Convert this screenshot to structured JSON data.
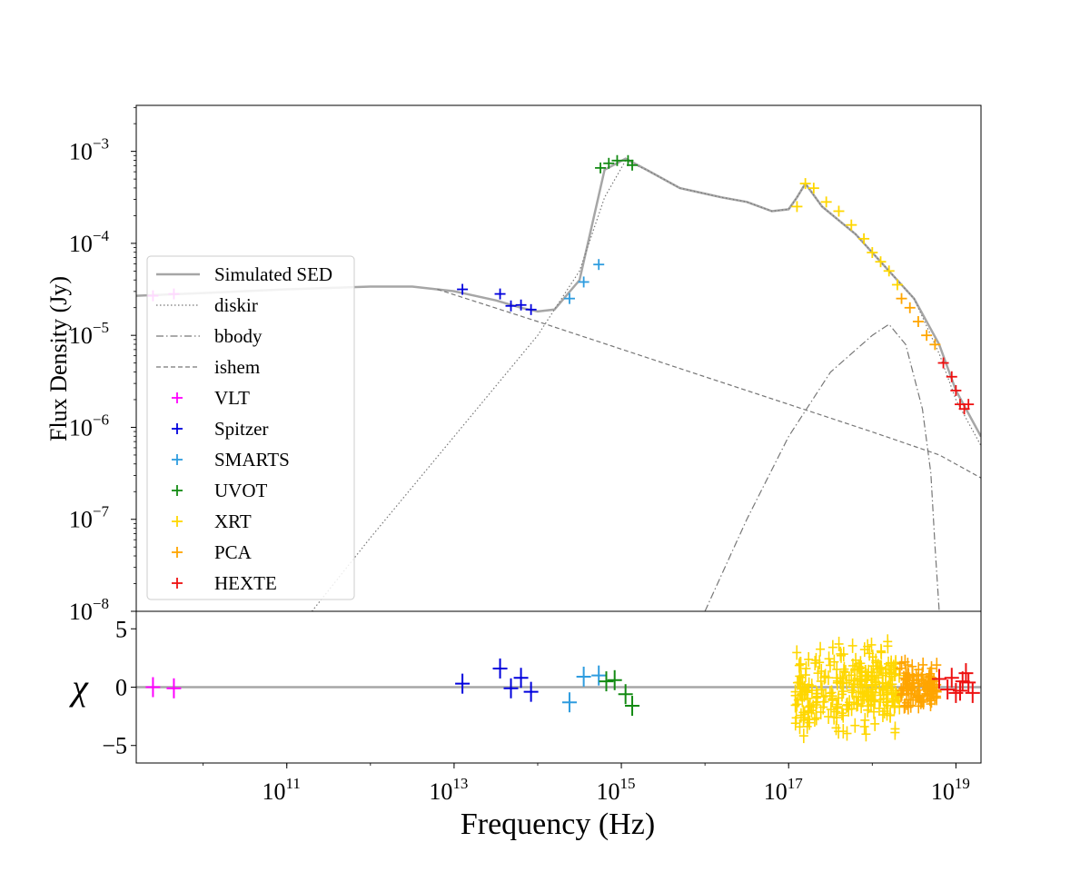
{
  "chart_data": [
    {
      "type": "line",
      "panel": "top",
      "title": "",
      "ylabel": "Flux  Density (Jy)",
      "xscale": "log",
      "yscale": "log",
      "xlim_log10": [
        9.2,
        19.3
      ],
      "ylim_log10": [
        -8,
        -2.5
      ],
      "y_ticks": [
        {
          "exp": -3,
          "base": "10",
          "sup": "−3"
        },
        {
          "exp": -4,
          "base": "10",
          "sup": "−4"
        },
        {
          "exp": -5,
          "base": "10",
          "sup": "−5"
        },
        {
          "exp": -6,
          "base": "10",
          "sup": "−6"
        },
        {
          "exp": -7,
          "base": "10",
          "sup": "−7"
        },
        {
          "exp": -8,
          "base": "10",
          "sup": "−8"
        }
      ],
      "legend_position": "lower-left",
      "model_curves": [
        {
          "name": "Simulated SED",
          "style": "solid",
          "color": "#a6a6a6",
          "points_log10": [
            [
              9.2,
              -4.57
            ],
            [
              10,
              -4.54
            ],
            [
              11,
              -4.5
            ],
            [
              12,
              -4.47
            ],
            [
              12.5,
              -4.47
            ],
            [
              13,
              -4.52
            ],
            [
              13.5,
              -4.62
            ],
            [
              13.8,
              -4.7
            ],
            [
              14,
              -4.74
            ],
            [
              14.2,
              -4.72
            ],
            [
              14.5,
              -4.4
            ],
            [
              14.8,
              -3.2
            ],
            [
              15.05,
              -3.08
            ],
            [
              15.3,
              -3.2
            ],
            [
              15.7,
              -3.4
            ],
            [
              16.2,
              -3.5
            ],
            [
              16.5,
              -3.55
            ],
            [
              16.8,
              -3.65
            ],
            [
              17,
              -3.63
            ],
            [
              17.1,
              -3.5
            ],
            [
              17.2,
              -3.35
            ],
            [
              17.4,
              -3.6
            ],
            [
              17.8,
              -3.9
            ],
            [
              18.2,
              -4.3
            ],
            [
              18.5,
              -4.6
            ],
            [
              18.8,
              -5.1
            ],
            [
              19,
              -5.6
            ],
            [
              19.3,
              -6.1
            ]
          ]
        },
        {
          "name": "diskir",
          "style": "dotted",
          "color": "#777777",
          "points_log10": [
            [
              11.3,
              -8
            ],
            [
              12,
              -7.2
            ],
            [
              13,
              -6.1
            ],
            [
              14,
              -5
            ],
            [
              14.5,
              -4.3
            ],
            [
              14.8,
              -3.5
            ],
            [
              15.05,
              -3.1
            ],
            [
              15.3,
              -3.2
            ],
            [
              15.7,
              -3.4
            ],
            [
              16.2,
              -3.5
            ],
            [
              16.5,
              -3.55
            ],
            [
              16.8,
              -3.65
            ],
            [
              17,
              -3.63
            ],
            [
              17.1,
              -3.5
            ],
            [
              17.2,
              -3.35
            ],
            [
              17.4,
              -3.6
            ],
            [
              17.8,
              -3.9
            ],
            [
              18.2,
              -4.3
            ],
            [
              18.5,
              -4.6
            ],
            [
              18.8,
              -5.2
            ],
            [
              19,
              -5.7
            ],
            [
              19.3,
              -6.2
            ]
          ]
        },
        {
          "name": "bbody",
          "style": "dash-dot",
          "color": "#777777",
          "points_log10": [
            [
              16,
              -8
            ],
            [
              16.5,
              -7
            ],
            [
              17,
              -6.1
            ],
            [
              17.5,
              -5.4
            ],
            [
              18,
              -5
            ],
            [
              18.2,
              -4.88
            ],
            [
              18.4,
              -5.1
            ],
            [
              18.6,
              -5.8
            ],
            [
              18.7,
              -6.5
            ],
            [
              18.75,
              -7.3
            ],
            [
              18.8,
              -8
            ]
          ]
        },
        {
          "name": "ishem",
          "style": "dashed",
          "color": "#777777",
          "points_log10": [
            [
              12.8,
              -4.5
            ],
            [
              14,
              -4.85
            ],
            [
              15,
              -5.15
            ],
            [
              16,
              -5.45
            ],
            [
              17,
              -5.75
            ],
            [
              18,
              -6.05
            ],
            [
              18.8,
              -6.3
            ],
            [
              19.3,
              -6.55
            ]
          ]
        }
      ],
      "series": [
        {
          "name": "VLT",
          "color": "#ff00ff",
          "points": [
            [
              9.4,
              -4.57
            ],
            [
              9.65,
              -4.55
            ]
          ]
        },
        {
          "name": "Spitzer",
          "color": "#0000dd",
          "points": [
            [
              13.1,
              -4.5
            ],
            [
              13.55,
              -4.55
            ],
            [
              13.68,
              -4.68
            ],
            [
              13.8,
              -4.67
            ],
            [
              13.92,
              -4.72
            ]
          ]
        },
        {
          "name": "SMARTS",
          "color": "#2e9cdf",
          "points": [
            [
              14.38,
              -4.6
            ],
            [
              14.55,
              -4.42
            ],
            [
              14.73,
              -4.23
            ]
          ]
        },
        {
          "name": "UVOT",
          "color": "#138a13",
          "points": [
            [
              14.75,
              -3.18
            ],
            [
              14.85,
              -3.13
            ],
            [
              14.95,
              -3.1
            ],
            [
              15.08,
              -3.1
            ],
            [
              15.13,
              -3.15
            ]
          ]
        },
        {
          "name": "XRT",
          "color": "#ffd700",
          "points": [
            [
              17.1,
              -3.6
            ],
            [
              17.2,
              -3.35
            ],
            [
              17.3,
              -3.4
            ],
            [
              17.45,
              -3.55
            ],
            [
              17.6,
              -3.65
            ],
            [
              17.75,
              -3.8
            ],
            [
              17.9,
              -3.95
            ],
            [
              18,
              -4.1
            ],
            [
              18.1,
              -4.2
            ],
            [
              18.2,
              -4.3
            ],
            [
              18.3,
              -4.45
            ]
          ]
        },
        {
          "name": "PCA",
          "color": "#ffa500",
          "points": [
            [
              18.35,
              -4.6
            ],
            [
              18.45,
              -4.7
            ],
            [
              18.55,
              -4.85
            ],
            [
              18.65,
              -5
            ],
            [
              18.75,
              -5.1
            ]
          ]
        },
        {
          "name": "HEXTE",
          "color": "#ee1111",
          "points": [
            [
              18.85,
              -5.3
            ],
            [
              18.95,
              -5.45
            ],
            [
              19,
              -5.6
            ],
            [
              19.05,
              -5.75
            ],
            [
              19.1,
              -5.8
            ],
            [
              19.15,
              -5.75
            ]
          ]
        }
      ],
      "legend_entries": [
        {
          "label": "Simulated SED",
          "kind": "line",
          "style": "solid",
          "color": "#a6a6a6"
        },
        {
          "label": "diskir",
          "kind": "line",
          "style": "dotted",
          "color": "#777777"
        },
        {
          "label": "bbody",
          "kind": "line",
          "style": "dash-dot",
          "color": "#777777"
        },
        {
          "label": "ishem",
          "kind": "line",
          "style": "dashed",
          "color": "#777777"
        },
        {
          "label": "VLT",
          "kind": "marker",
          "color": "#ff00ff"
        },
        {
          "label": "Spitzer",
          "kind": "marker",
          "color": "#0000dd"
        },
        {
          "label": "SMARTS",
          "kind": "marker",
          "color": "#2e9cdf"
        },
        {
          "label": "UVOT",
          "kind": "marker",
          "color": "#138a13"
        },
        {
          "label": "XRT",
          "kind": "marker",
          "color": "#ffd700"
        },
        {
          "label": "PCA",
          "kind": "marker",
          "color": "#ffa500"
        },
        {
          "label": "HEXTE",
          "kind": "marker",
          "color": "#ee1111"
        }
      ]
    },
    {
      "type": "scatter",
      "panel": "bottom",
      "ylabel": "χ",
      "xlabel": "Frequency (Hz)",
      "xscale": "log",
      "xlim_log10": [
        9.2,
        19.3
      ],
      "ylim": [
        -6.5,
        6.5
      ],
      "y_ticks": [
        {
          "value": 5,
          "label": "5"
        },
        {
          "value": 0,
          "label": "0"
        },
        {
          "value": -5,
          "label": "−5"
        }
      ],
      "x_ticks": [
        {
          "exp": 11,
          "base": "10",
          "sup": "11"
        },
        {
          "exp": 13,
          "base": "10",
          "sup": "13"
        },
        {
          "exp": 15,
          "base": "10",
          "sup": "15"
        },
        {
          "exp": 17,
          "base": "10",
          "sup": "17"
        },
        {
          "exp": 19,
          "base": "10",
          "sup": "19"
        }
      ],
      "zero_line_color": "#a6a6a6",
      "residual_groups": [
        {
          "name": "VLT",
          "color": "#ff00ff",
          "points": [
            [
              9.4,
              0
            ],
            [
              9.65,
              -0.1
            ]
          ]
        },
        {
          "name": "Spitzer",
          "color": "#0000dd",
          "points": [
            [
              13.1,
              0.3
            ],
            [
              13.55,
              1.6
            ],
            [
              13.68,
              -0.1
            ],
            [
              13.8,
              0.8
            ],
            [
              13.92,
              -0.4
            ]
          ]
        },
        {
          "name": "SMARTS",
          "color": "#2e9cdf",
          "points": [
            [
              14.38,
              -1.3
            ],
            [
              14.55,
              0.9
            ],
            [
              14.73,
              1
            ]
          ]
        },
        {
          "name": "UVOT",
          "color": "#138a13",
          "points": [
            [
              14.82,
              0.5
            ],
            [
              14.92,
              0.6
            ],
            [
              15.05,
              -0.6
            ],
            [
              15.13,
              -1.6
            ]
          ]
        },
        {
          "name": "XRT",
          "color": "#ffd700",
          "band": {
            "from": 17.08,
            "to": 18.33,
            "range": [
              -4.8,
              4.5
            ]
          }
        },
        {
          "name": "PCA",
          "color": "#ffa500",
          "band": {
            "from": 18.33,
            "to": 18.78,
            "range": [
              -2.5,
              2.5
            ]
          }
        },
        {
          "name": "HEXTE",
          "color": "#ee1111",
          "points": [
            [
              18.8,
              0.7
            ],
            [
              18.9,
              -0.2
            ],
            [
              18.95,
              0.8
            ],
            [
              19,
              -0.5
            ],
            [
              19.05,
              -0.3
            ],
            [
              19.08,
              0.5
            ],
            [
              19.12,
              1.2
            ],
            [
              19.15,
              0.4
            ],
            [
              19.2,
              -0.5
            ]
          ]
        }
      ]
    }
  ]
}
